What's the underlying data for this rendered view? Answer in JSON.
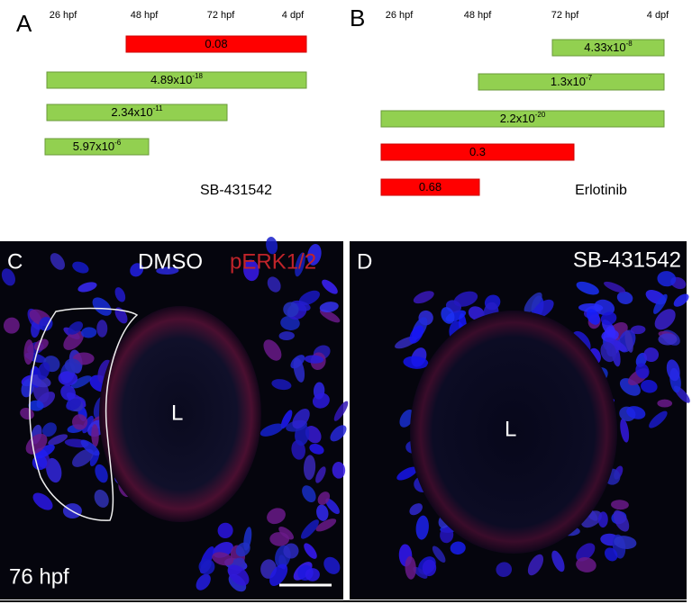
{
  "panel_a": {
    "label": "A",
    "ticks": [
      "26 hpf",
      "48 hpf",
      "72 hpf",
      "4 dpf"
    ],
    "bars": [
      {
        "base": "0.08"
      },
      {
        "base": "4.89x10",
        "exp": "-18"
      },
      {
        "base": "2.34x10",
        "exp": "-11"
      },
      {
        "base": "5.97x10",
        "exp": "-6"
      }
    ],
    "drug": "SB-431542"
  },
  "panel_b": {
    "label": "B",
    "ticks": [
      "26 hpf",
      "48 hpf",
      "72 hpf",
      "4 dpf"
    ],
    "bars": [
      {
        "base": "4.33x10",
        "exp": "-8"
      },
      {
        "base": "1.3x10",
        "exp": "-7"
      },
      {
        "base": "2.2x10",
        "exp": "-20"
      },
      {
        "base": "0.3"
      },
      {
        "base": "0.68"
      }
    ],
    "drug": "Erlotinib"
  },
  "panel_c": {
    "label": "C",
    "stain1": "DMSO",
    "stain2": "pERK1/2",
    "lens": "L",
    "stage": "76 hpf"
  },
  "panel_d": {
    "label": "D",
    "treatment": "SB-431542",
    "lens": "L"
  }
}
